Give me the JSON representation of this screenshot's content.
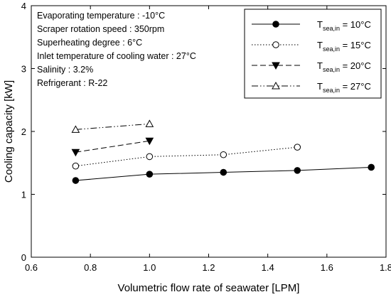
{
  "chart_data": {
    "type": "line",
    "xlabel": "Volumetric flow rate of seawater [LPM]",
    "ylabel": "Cooling capacity [kW]",
    "xlim": [
      0.6,
      1.8
    ],
    "ylim": [
      0,
      4
    ],
    "xticks": [
      "0.6",
      "0.8",
      "1.0",
      "1.2",
      "1.4",
      "1.6",
      "1.8"
    ],
    "yticks": [
      "0",
      "1",
      "2",
      "3",
      "4"
    ],
    "grid": false,
    "legend_position": "top-right",
    "annotations": [
      "Evaporating temperature : -10°C",
      "Scraper rotation speed : 350rpm",
      "Superheating degree : 6°C",
      "Inlet temperature of cooling water : 27°C",
      "Salinity : 3.2%",
      "Refrigerant : R-22"
    ],
    "legend_var": "T",
    "legend_sub": "sea,in",
    "series": [
      {
        "name": "10°C",
        "label_value": " = 10°C",
        "marker": "filled-circle",
        "line": "solid",
        "x": [
          0.75,
          1.0,
          1.25,
          1.5,
          1.75
        ],
        "y": [
          1.22,
          1.32,
          1.35,
          1.38,
          1.43
        ]
      },
      {
        "name": "15°C",
        "label_value": " = 15°C",
        "marker": "open-circle",
        "line": "dotted",
        "x": [
          0.75,
          1.0,
          1.25,
          1.5
        ],
        "y": [
          1.45,
          1.6,
          1.63,
          1.75
        ]
      },
      {
        "name": "20°C",
        "label_value": " = 20°C",
        "marker": "filled-triangle-down",
        "line": "dashed",
        "x": [
          0.75,
          1.0
        ],
        "y": [
          1.67,
          1.85
        ]
      },
      {
        "name": "27°C",
        "label_value": " = 27°C",
        "marker": "open-triangle-up",
        "line": "dash-dot-dot",
        "x": [
          0.75,
          1.0
        ],
        "y": [
          2.03,
          2.12
        ]
      }
    ]
  }
}
